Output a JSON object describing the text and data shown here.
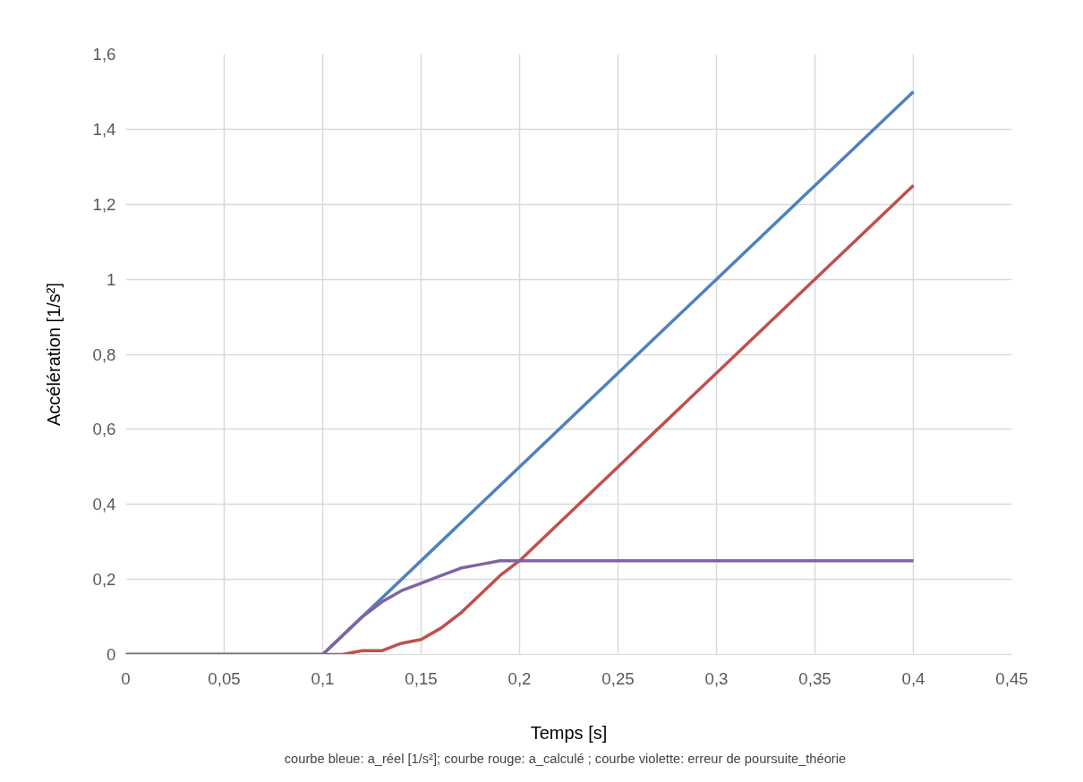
{
  "chart_data": {
    "type": "line",
    "xlabel": "Temps [s]",
    "ylabel": "Accélération [1/s²]",
    "annotations": [
      "courbe bleue: a_réel [1/s²];  courbe rouge: a_calculé ;  courbe violette: erreur de poursuite_théorie"
    ],
    "series": [
      {
        "color": "#4f81bd",
        "x": [
          0,
          0.1,
          0.4
        ],
        "values": [
          0,
          0,
          1.5
        ]
      },
      {
        "color": "#c0504d",
        "x": [
          0,
          0.1,
          0.11,
          0.12,
          0.13,
          0.14,
          0.15,
          0.16,
          0.17,
          0.18,
          0.19,
          0.2,
          0.4
        ],
        "values": [
          0,
          0,
          0.0,
          0.01,
          0.01,
          0.03,
          0.04,
          0.07,
          0.11,
          0.16,
          0.21,
          0.25,
          1.25
        ]
      },
      {
        "color": "#8064a2",
        "x": [
          0,
          0.1,
          0.11,
          0.12,
          0.13,
          0.14,
          0.15,
          0.16,
          0.17,
          0.18,
          0.19,
          0.2,
          0.4
        ],
        "values": [
          0,
          0,
          0.05,
          0.1,
          0.14,
          0.17,
          0.19,
          0.21,
          0.23,
          0.24,
          0.25,
          0.25,
          0.25
        ]
      }
    ],
    "xlim": [
      0,
      0.45
    ],
    "xticks": [
      0,
      {
        "value": 0.05,
        "label": "0,05"
      },
      {
        "value": 0.1,
        "label": "0,1"
      },
      {
        "value": 0.15,
        "label": "0,15"
      },
      {
        "value": 0.2,
        "label": "0,2"
      },
      {
        "value": 0.25,
        "label": "0,25"
      },
      {
        "value": 0.3,
        "label": "0,3"
      },
      {
        "value": 0.35,
        "label": "0,35"
      },
      {
        "value": 0.4,
        "label": "0,4"
      },
      {
        "value": 0.45,
        "label": "0,45"
      }
    ],
    "ylim": [
      0,
      1.6
    ],
    "yticks": [
      0,
      {
        "value": 0.2,
        "label": "0,2"
      },
      {
        "value": 0.4,
        "label": "0,4"
      },
      {
        "value": 0.6,
        "label": "0,6"
      },
      {
        "value": 0.8,
        "label": "0,8"
      },
      1,
      {
        "value": 1.2,
        "label": "1,2"
      },
      {
        "value": 1.4,
        "label": "1,4"
      },
      {
        "value": 1.6,
        "label": "1,6"
      }
    ],
    "grid": true,
    "marker": "none",
    "line_style": "solid"
  }
}
